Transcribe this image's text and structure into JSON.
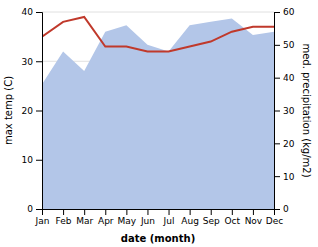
{
  "chart_data": {
    "type": "line",
    "categories": [
      "Jan",
      "Feb",
      "Mar",
      "Apr",
      "May",
      "Jun",
      "Jul",
      "Aug",
      "Sep",
      "Oct",
      "Nov",
      "Dec"
    ],
    "series": [
      {
        "type": "area",
        "axis": "y2",
        "color": "#b3c6e8",
        "values": [
          38,
          48,
          42,
          54,
          56,
          50,
          48,
          56,
          57,
          58,
          53,
          54
        ]
      },
      {
        "type": "line",
        "color": "#c0392b",
        "values": [
          35,
          38,
          39,
          33,
          33,
          32,
          32,
          33,
          34,
          36,
          37,
          37
        ]
      }
    ],
    "xlabel": "date (month)",
    "ylabel": "max temp (C)",
    "y2label": "med. precipitation (kg/m2)",
    "ylim": [
      0,
      40
    ],
    "yticks": [
      0,
      10,
      20,
      30,
      40
    ],
    "y2lim": [
      0,
      60
    ],
    "y2ticks": [
      0,
      10,
      20,
      30,
      40,
      50,
      60
    ],
    "grid": true
  }
}
